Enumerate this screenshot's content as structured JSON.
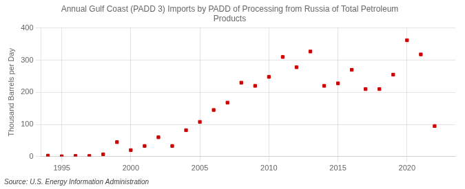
{
  "chart_data": {
    "type": "scatter",
    "title": "Annual Gulf Coast (PADD 3) Imports by PADD of Processing from Russia of Total Petroleum\nProducts",
    "ylabel": "Thousand Barrels per Day",
    "annotations": [
      "Source: U.S. Energy Information Administration"
    ],
    "x": [
      1994,
      1995,
      1996,
      1997,
      1998,
      1999,
      2000,
      2001,
      2002,
      2003,
      2004,
      2005,
      2006,
      2007,
      2008,
      2009,
      2010,
      2011,
      2012,
      2013,
      2014,
      2015,
      2016,
      2017,
      2018,
      2019,
      2020,
      2021,
      2022
    ],
    "values": [
      3,
      1,
      2,
      2,
      7,
      45,
      20,
      33,
      60,
      33,
      82,
      108,
      145,
      168,
      230,
      220,
      248,
      310,
      278,
      327,
      220,
      228,
      270,
      210,
      210,
      255,
      362,
      318,
      95
    ],
    "color": "#cc0000",
    "marker": "square",
    "xlim": [
      1993.5,
      2023.5
    ],
    "ylim": [
      0,
      400
    ],
    "xticks": [
      1995,
      2000,
      2005,
      2010,
      2015,
      2020
    ],
    "yticks": [
      0,
      100,
      200,
      300,
      400
    ],
    "grid": true
  }
}
